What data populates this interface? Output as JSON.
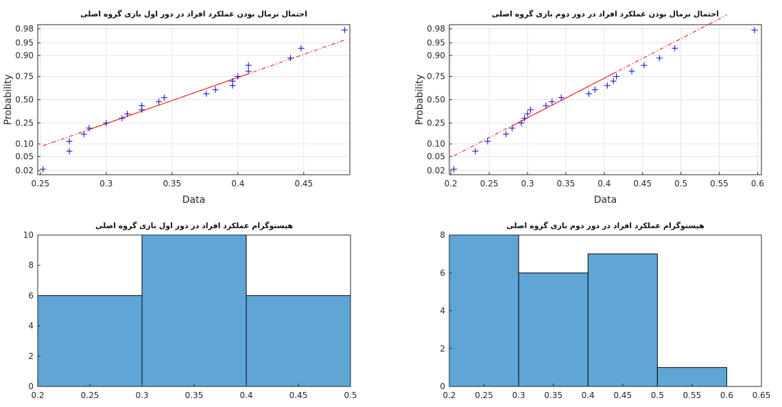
{
  "figure": {
    "background": "#ffffff",
    "axes_color": "#262626",
    "grid_color": "#e6e6e6"
  },
  "chart_data": [
    {
      "type": "scatter",
      "subtype": "normal-probability-plot",
      "title": "احتمال نرمال بودن عملکرد افراد در دور اول بازی گروه اصلی",
      "xlabel": "Data",
      "ylabel": "Probability",
      "xlim": [
        0.248,
        0.485
      ],
      "xticks": [
        0.25,
        0.3,
        0.35,
        0.4,
        0.45
      ],
      "xtick_labels": [
        "0.25",
        "0.3",
        "0.35",
        "0.4",
        "0.45"
      ],
      "yticks": [
        0.02,
        0.05,
        0.1,
        0.25,
        0.5,
        0.75,
        0.9,
        0.95,
        0.98
      ],
      "ytick_labels": [
        "0.02",
        "0.05",
        "0.10",
        "0.25",
        "0.50",
        "0.75",
        "0.90",
        "0.95",
        "0.98"
      ],
      "grid": true,
      "marker": "+",
      "marker_color": "#0000cc",
      "fit_line_color": "#ff0000",
      "fit_line": {
        "x": [
          0.252,
          0.481
        ],
        "p": [
          0.091,
          0.958
        ]
      },
      "fit_solid_between": [
        0.287,
        0.408
      ],
      "points": [
        {
          "x": 0.252,
          "p": 0.022
        },
        {
          "x": 0.272,
          "p": 0.068
        },
        {
          "x": 0.272,
          "p": 0.114
        },
        {
          "x": 0.283,
          "p": 0.159
        },
        {
          "x": 0.287,
          "p": 0.205
        },
        {
          "x": 0.3,
          "p": 0.25
        },
        {
          "x": 0.312,
          "p": 0.295
        },
        {
          "x": 0.316,
          "p": 0.341
        },
        {
          "x": 0.327,
          "p": 0.386
        },
        {
          "x": 0.327,
          "p": 0.432
        },
        {
          "x": 0.34,
          "p": 0.477
        },
        {
          "x": 0.344,
          "p": 0.523
        },
        {
          "x": 0.376,
          "p": 0.568
        },
        {
          "x": 0.383,
          "p": 0.614
        },
        {
          "x": 0.396,
          "p": 0.659
        },
        {
          "x": 0.396,
          "p": 0.705
        },
        {
          "x": 0.4,
          "p": 0.75
        },
        {
          "x": 0.408,
          "p": 0.795
        },
        {
          "x": 0.408,
          "p": 0.841
        },
        {
          "x": 0.44,
          "p": 0.886
        },
        {
          "x": 0.448,
          "p": 0.932
        },
        {
          "x": 0.481,
          "p": 0.978
        }
      ]
    },
    {
      "type": "scatter",
      "subtype": "normal-probability-plot",
      "title": "احتمال نرمال بودن عملکرد افراد در دور دوم بازی گروه اصلی",
      "xlabel": "Data",
      "ylabel": "Probability",
      "xlim": [
        0.198,
        0.605
      ],
      "xticks": [
        0.2,
        0.25,
        0.3,
        0.35,
        0.4,
        0.45,
        0.5,
        0.55,
        0.6
      ],
      "xtick_labels": [
        "0.2",
        "0.25",
        "0.3",
        "0.35",
        "0.4",
        "0.45",
        "0.5",
        "0.55",
        "0.6"
      ],
      "yticks": [
        0.02,
        0.05,
        0.1,
        0.25,
        0.5,
        0.75,
        0.9,
        0.95,
        0.98
      ],
      "ytick_labels": [
        "0.02",
        "0.05",
        "0.10",
        "0.25",
        "0.50",
        "0.75",
        "0.90",
        "0.95",
        "0.98"
      ],
      "grid": true,
      "marker": "+",
      "marker_color": "#0000cc",
      "fit_line_color": "#ff0000",
      "fit_line": {
        "x": [
          0.204,
          0.56
        ],
        "p": [
          0.052,
          0.993
        ]
      },
      "fit_solid_between": [
        0.28,
        0.415
      ],
      "points": [
        {
          "x": 0.204,
          "p": 0.022
        },
        {
          "x": 0.232,
          "p": 0.068
        },
        {
          "x": 0.248,
          "p": 0.114
        },
        {
          "x": 0.272,
          "p": 0.159
        },
        {
          "x": 0.28,
          "p": 0.205
        },
        {
          "x": 0.292,
          "p": 0.25
        },
        {
          "x": 0.296,
          "p": 0.295
        },
        {
          "x": 0.3,
          "p": 0.341
        },
        {
          "x": 0.304,
          "p": 0.386
        },
        {
          "x": 0.324,
          "p": 0.432
        },
        {
          "x": 0.332,
          "p": 0.477
        },
        {
          "x": 0.344,
          "p": 0.523
        },
        {
          "x": 0.38,
          "p": 0.568
        },
        {
          "x": 0.388,
          "p": 0.614
        },
        {
          "x": 0.404,
          "p": 0.659
        },
        {
          "x": 0.412,
          "p": 0.705
        },
        {
          "x": 0.416,
          "p": 0.75
        },
        {
          "x": 0.436,
          "p": 0.795
        },
        {
          "x": 0.452,
          "p": 0.841
        },
        {
          "x": 0.472,
          "p": 0.886
        },
        {
          "x": 0.492,
          "p": 0.932
        },
        {
          "x": 0.596,
          "p": 0.978
        }
      ]
    },
    {
      "type": "bar",
      "subtype": "histogram",
      "title": "هیستوگرام عملکرد افراد در دور اول بازی گروه اصلی",
      "xlabel": "",
      "ylabel": "",
      "xlim": [
        0.2,
        0.5
      ],
      "ylim": [
        0,
        10
      ],
      "xticks": [
        0.2,
        0.25,
        0.3,
        0.35,
        0.4,
        0.45,
        0.5
      ],
      "xtick_labels": [
        "0.2",
        "0.25",
        "0.3",
        "0.35",
        "0.4",
        "0.45",
        "0.5"
      ],
      "yticks": [
        0,
        2,
        4,
        6,
        8,
        10
      ],
      "ytick_labels": [
        "0",
        "2",
        "4",
        "6",
        "8",
        "10"
      ],
      "grid": false,
      "bar_color": "#5fa6d6",
      "bins": [
        {
          "from": 0.2,
          "to": 0.3,
          "count": 6
        },
        {
          "from": 0.3,
          "to": 0.4,
          "count": 10
        },
        {
          "from": 0.4,
          "to": 0.5,
          "count": 6
        }
      ]
    },
    {
      "type": "bar",
      "subtype": "histogram",
      "title": "هیستوگرام عملکرد افراد در دور دوم بازی گروه اصلی",
      "xlabel": "",
      "ylabel": "",
      "xlim": [
        0.2,
        0.65
      ],
      "ylim": [
        0,
        8
      ],
      "xticks": [
        0.2,
        0.25,
        0.3,
        0.35,
        0.4,
        0.45,
        0.5,
        0.55,
        0.6,
        0.65
      ],
      "xtick_labels": [
        "0.2",
        "0.25",
        "0.3",
        "0.35",
        "0.4",
        "0.45",
        "0.5",
        "0.55",
        "0.6",
        "0.65"
      ],
      "yticks": [
        0,
        2,
        4,
        6,
        8
      ],
      "ytick_labels": [
        "0",
        "2",
        "4",
        "6",
        "8"
      ],
      "grid": false,
      "bar_color": "#5fa6d6",
      "bins": [
        {
          "from": 0.2,
          "to": 0.3,
          "count": 8
        },
        {
          "from": 0.3,
          "to": 0.4,
          "count": 6
        },
        {
          "from": 0.4,
          "to": 0.5,
          "count": 7
        },
        {
          "from": 0.5,
          "to": 0.6,
          "count": 1
        }
      ]
    }
  ]
}
